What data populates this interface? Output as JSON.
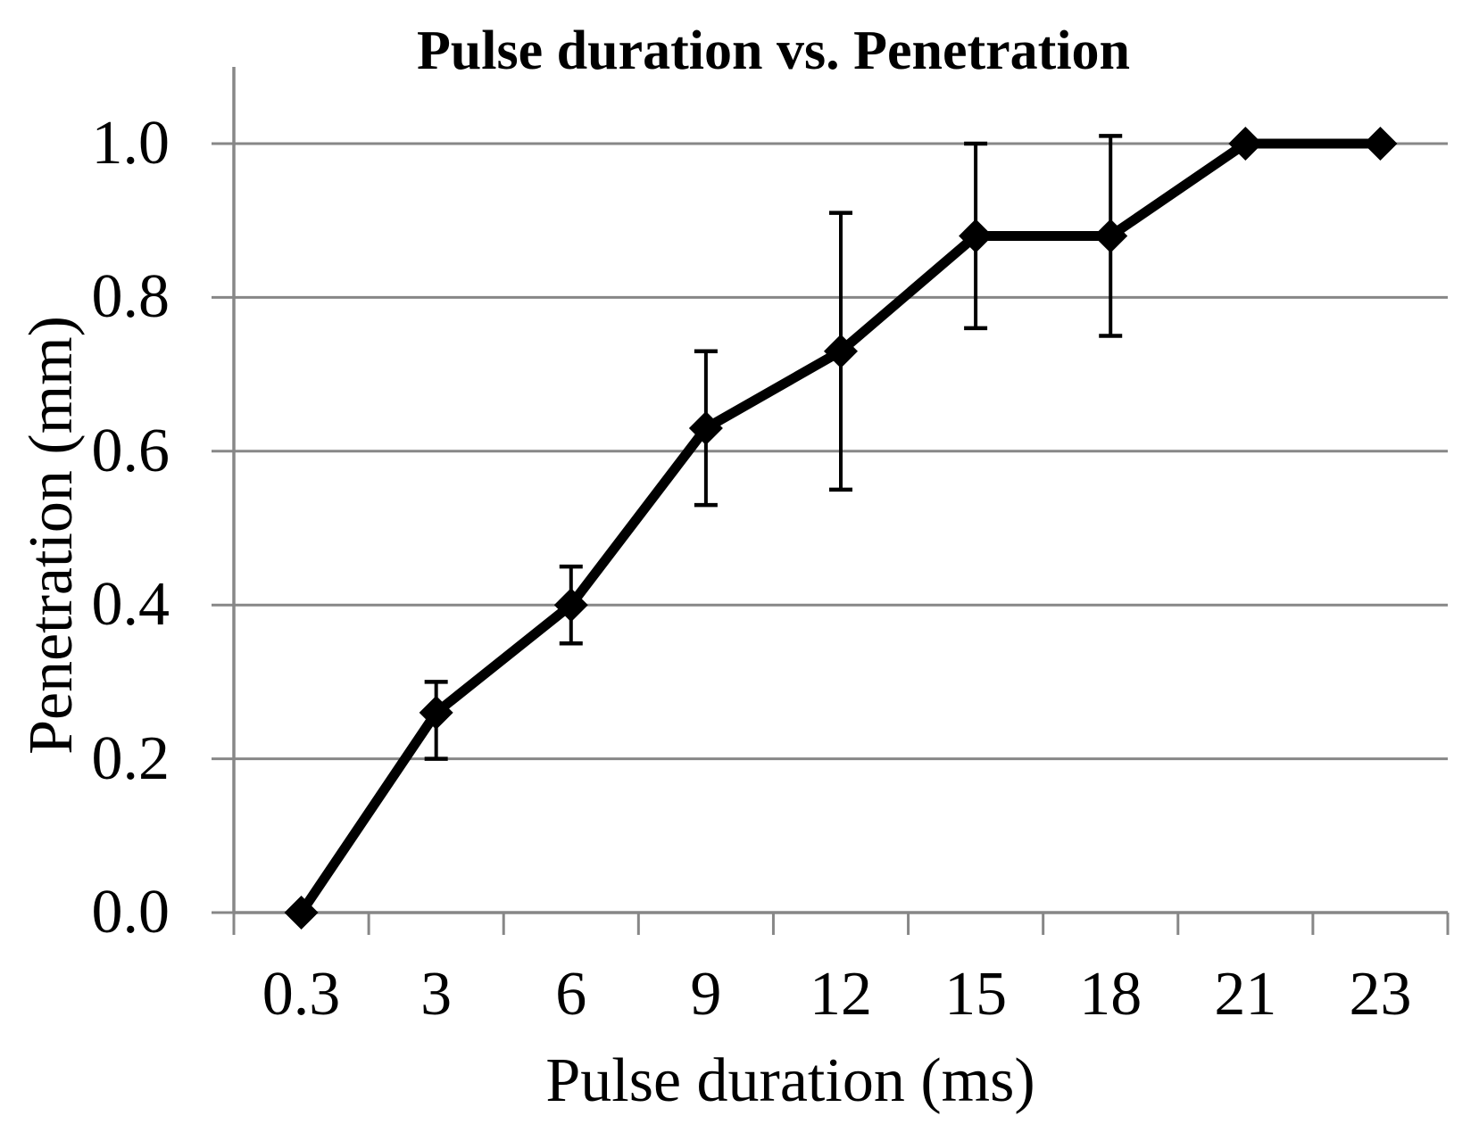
{
  "chart_data": {
    "type": "line",
    "title": "Pulse duration vs. Penetration",
    "xlabel": "Pulse duration (ms)",
    "ylabel": "Penetration (mm)",
    "categories": [
      "0.3",
      "3",
      "6",
      "9",
      "12",
      "15",
      "18",
      "21",
      "23"
    ],
    "series": [
      {
        "name": "Penetration",
        "values": [
          0.0,
          0.26,
          0.4,
          0.63,
          0.73,
          0.88,
          0.88,
          1.0,
          1.0
        ],
        "error_low": [
          null,
          0.2,
          0.35,
          0.53,
          0.55,
          0.76,
          0.75,
          null,
          null
        ],
        "error_high": [
          null,
          0.3,
          0.45,
          0.73,
          0.91,
          1.0,
          1.01,
          null,
          null
        ]
      }
    ],
    "ylim": [
      0.0,
      1.0
    ],
    "ytick_labels": [
      "0.0",
      "0.2",
      "0.4",
      "0.6",
      "0.8",
      "1.0"
    ],
    "marker": "diamond",
    "grid": true,
    "legend": "none",
    "colors": {
      "line": "#000000",
      "marker": "#000000",
      "error_bar": "#000000",
      "grid": "#878787",
      "axis": "#878787",
      "text": "#000000",
      "background": "#ffffff"
    }
  }
}
